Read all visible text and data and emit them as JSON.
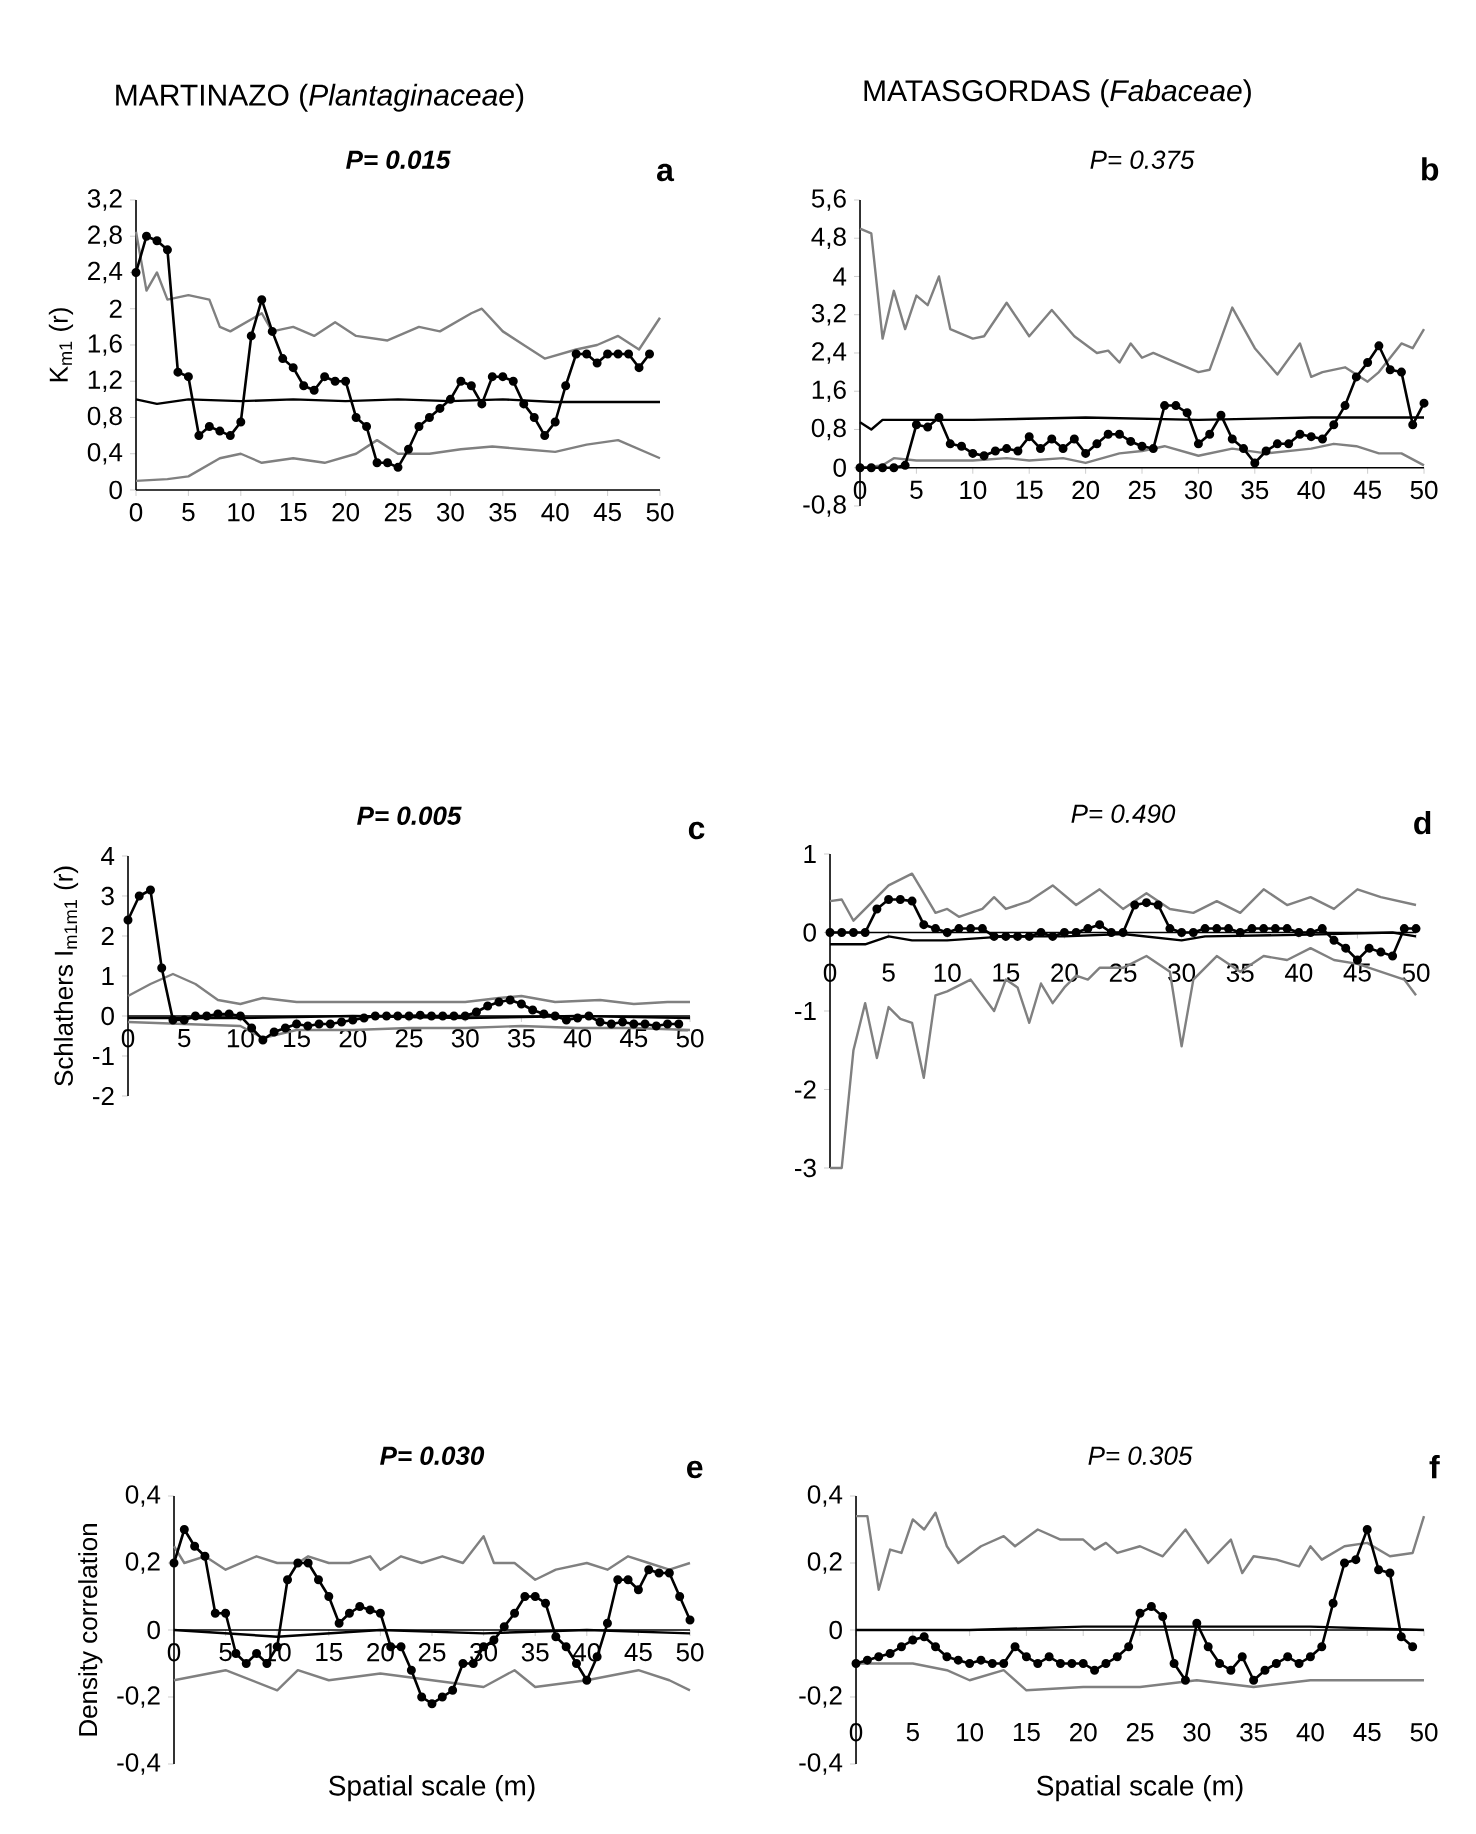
{
  "chart_data": [
    {
      "type": "line",
      "subtitle": "MARTINAZO (*Plantaginaceae*)",
      "title": "**P= 0.015**",
      "ylabel": "K$_{m1}$ (r)",
      "annotations": [
        "a"
      ],
      "xlim": [
        0,
        50
      ],
      "ylim": [
        0,
        3.2
      ],
      "xticks": [
        0,
        5,
        10,
        15,
        20,
        25,
        30,
        35,
        40,
        45,
        50
      ],
      "yticks": [
        0,
        {
          "value": 0.4,
          "label": "0,4"
        },
        {
          "value": 0.8,
          "label": "0,8"
        },
        {
          "value": 1.2,
          "label": "1,2"
        },
        {
          "value": 1.6,
          "label": "1,6"
        },
        2,
        {
          "value": 2.4,
          "label": "2,4"
        },
        {
          "value": 2.8,
          "label": "2,8"
        },
        {
          "value": 3.2,
          "label": "3,2"
        }
      ],
      "series": [
        {
          "color": "#808080",
          "x": [
            0,
            1,
            2,
            3,
            5,
            7,
            8,
            9,
            12,
            13,
            15,
            17,
            19,
            21,
            24,
            27,
            29,
            32,
            33,
            35,
            37,
            39,
            42,
            44,
            46,
            48,
            50
          ],
          "values": [
            2.85,
            2.2,
            2.4,
            2.1,
            2.15,
            2.1,
            1.8,
            1.75,
            1.95,
            1.75,
            1.8,
            1.7,
            1.85,
            1.7,
            1.65,
            1.8,
            1.75,
            1.95,
            2.0,
            1.75,
            1.6,
            1.45,
            1.55,
            1.6,
            1.7,
            1.55,
            1.9
          ]
        },
        {
          "color": "#808080",
          "x": [
            0,
            3,
            5,
            8,
            10,
            12,
            15,
            18,
            21,
            23,
            25,
            28,
            31,
            34,
            37,
            40,
            43,
            46,
            48,
            50
          ],
          "values": [
            0.1,
            0.12,
            0.15,
            0.35,
            0.4,
            0.3,
            0.35,
            0.3,
            0.4,
            0.55,
            0.4,
            0.4,
            0.45,
            0.48,
            0.45,
            0.42,
            0.5,
            0.55,
            0.45,
            0.35
          ]
        },
        {
          "color": "#000000",
          "x": [
            0,
            2,
            5,
            10,
            15,
            20,
            25,
            30,
            35,
            40,
            45,
            50
          ],
          "values": [
            1.0,
            0.95,
            1.0,
            0.98,
            1.0,
            0.98,
            1.0,
            0.98,
            1.0,
            0.97,
            0.97,
            0.97
          ]
        },
        {
          "color": "#000000",
          "marker": "circle",
          "x": [
            0,
            1,
            2,
            3,
            4,
            5,
            6,
            7,
            8,
            9,
            10,
            11,
            12,
            13,
            14,
            15,
            16,
            17,
            18,
            19,
            20,
            21,
            22,
            23,
            24,
            25,
            26,
            27,
            28,
            29,
            30,
            31,
            32,
            33,
            34,
            35,
            36,
            37,
            38,
            39,
            40,
            41,
            42,
            43,
            44,
            45,
            46,
            47,
            48,
            49
          ],
          "values": [
            2.4,
            2.8,
            2.75,
            2.65,
            1.3,
            1.25,
            0.6,
            0.7,
            0.65,
            0.6,
            0.75,
            1.7,
            2.1,
            1.75,
            1.45,
            1.35,
            1.15,
            1.1,
            1.25,
            1.2,
            1.2,
            0.8,
            0.7,
            0.3,
            0.3,
            0.25,
            0.45,
            0.7,
            0.8,
            0.9,
            1.0,
            1.2,
            1.15,
            0.95,
            1.25,
            1.25,
            1.2,
            0.95,
            0.8,
            0.6,
            0.75,
            1.15,
            1.5,
            1.5,
            1.4,
            1.5,
            1.5,
            1.5,
            1.35,
            1.5
          ]
        }
      ]
    },
    {
      "type": "line",
      "subtitle": "MATASGORDAS (*Fabaceae*)",
      "title": "P= 0.375",
      "annotations": [
        "b"
      ],
      "xlim": [
        0,
        50
      ],
      "ylim": [
        -0.8,
        5.6
      ],
      "xticks": [
        0,
        5,
        10,
        15,
        20,
        25,
        30,
        35,
        40,
        45,
        50
      ],
      "yticks": [
        {
          "value": -0.8,
          "label": "-0,8"
        },
        0,
        {
          "value": 0.8,
          "label": "0,8"
        },
        {
          "value": 1.6,
          "label": "1,6"
        },
        {
          "value": 2.4,
          "label": "2,4"
        },
        {
          "value": 3.2,
          "label": "3,2"
        },
        4,
        {
          "value": 4.8,
          "label": "4,8"
        },
        {
          "value": 5.6,
          "label": "5,6"
        }
      ],
      "series": [
        {
          "color": "#808080",
          "x": [
            0,
            1,
            2,
            3,
            4,
            5,
            6,
            7,
            8,
            10,
            11,
            13,
            15,
            17,
            19,
            21,
            22,
            23,
            24,
            25,
            26,
            28,
            30,
            31,
            33,
            35,
            37,
            39,
            40,
            41,
            43,
            45,
            46,
            48,
            49,
            50
          ],
          "values": [
            5.0,
            4.9,
            2.7,
            3.7,
            2.9,
            3.6,
            3.4,
            4.0,
            2.9,
            2.7,
            2.75,
            3.45,
            2.75,
            3.3,
            2.75,
            2.4,
            2.45,
            2.2,
            2.6,
            2.3,
            2.4,
            2.2,
            2.0,
            2.05,
            3.35,
            2.5,
            1.95,
            2.6,
            1.9,
            2.0,
            2.1,
            1.8,
            2.0,
            2.6,
            2.5,
            2.9
          ]
        },
        {
          "color": "#808080",
          "x": [
            0,
            2,
            3,
            5,
            10,
            13,
            15,
            18,
            20,
            23,
            25,
            27,
            30,
            33,
            36,
            40,
            42,
            44,
            46,
            48,
            50
          ],
          "values": [
            0,
            0.05,
            0.2,
            0.15,
            0.15,
            0.2,
            0.15,
            0.2,
            0.1,
            0.3,
            0.35,
            0.45,
            0.25,
            0.4,
            0.3,
            0.4,
            0.5,
            0.45,
            0.3,
            0.3,
            0.05
          ]
        },
        {
          "color": "#000000",
          "x": [
            0,
            1,
            2,
            5,
            10,
            20,
            30,
            40,
            50
          ],
          "values": [
            0.95,
            0.8,
            1.0,
            1.0,
            1.0,
            1.05,
            1.0,
            1.05,
            1.05
          ]
        },
        {
          "color": "#000000",
          "marker": "circle",
          "x": [
            0,
            1,
            2,
            3,
            4,
            5,
            6,
            7,
            8,
            9,
            10,
            11,
            12,
            13,
            14,
            15,
            16,
            17,
            18,
            19,
            20,
            21,
            22,
            23,
            24,
            25,
            26,
            27,
            28,
            29,
            30,
            31,
            32,
            33,
            34,
            35,
            36,
            37,
            38,
            39,
            40,
            41,
            42,
            43,
            44,
            45,
            46,
            47,
            48,
            49,
            50
          ],
          "values": [
            0,
            0,
            0,
            0,
            0.05,
            0.9,
            0.85,
            1.05,
            0.5,
            0.45,
            0.3,
            0.25,
            0.35,
            0.4,
            0.35,
            0.65,
            0.4,
            0.6,
            0.4,
            0.6,
            0.3,
            0.5,
            0.7,
            0.7,
            0.55,
            0.45,
            0.4,
            1.3,
            1.3,
            1.15,
            0.5,
            0.7,
            1.1,
            0.6,
            0.4,
            0.1,
            0.35,
            0.5,
            0.5,
            0.7,
            0.65,
            0.6,
            0.9,
            1.3,
            1.9,
            2.2,
            2.55,
            2.05,
            2.0,
            0.9,
            1.35
          ]
        }
      ]
    },
    {
      "type": "line",
      "title": "**P= 0.005**",
      "ylabel": "Schlathers I$_{m1m1}$ (r)",
      "annotations": [
        "c"
      ],
      "xlim": [
        0,
        50
      ],
      "ylim": [
        -2,
        4
      ],
      "xticks": [
        0,
        5,
        10,
        15,
        20,
        25,
        30,
        35,
        40,
        45,
        50
      ],
      "yticks": [
        -2,
        -1,
        0,
        1,
        2,
        3,
        4
      ],
      "series": [
        {
          "color": "#808080",
          "x": [
            0,
            2,
            4,
            6,
            8,
            10,
            12,
            15,
            20,
            25,
            30,
            33,
            35,
            38,
            42,
            45,
            48,
            50
          ],
          "values": [
            0.5,
            0.8,
            1.05,
            0.8,
            0.4,
            0.3,
            0.45,
            0.35,
            0.35,
            0.35,
            0.35,
            0.45,
            0.5,
            0.35,
            0.4,
            0.3,
            0.35,
            0.35
          ]
        },
        {
          "color": "#808080",
          "x": [
            0,
            5,
            10,
            12,
            15,
            20,
            25,
            30,
            35,
            40,
            45,
            50
          ],
          "values": [
            -0.15,
            -0.2,
            -0.25,
            -0.55,
            -0.35,
            -0.35,
            -0.3,
            -0.3,
            -0.25,
            -0.3,
            -0.3,
            -0.35
          ]
        },
        {
          "color": "#000000",
          "x": [
            0,
            10,
            20,
            30,
            40,
            50
          ],
          "values": [
            -0.05,
            -0.05,
            0,
            -0.05,
            0,
            -0.05
          ]
        },
        {
          "color": "#000000",
          "marker": "circle",
          "x": [
            0,
            1,
            2,
            3,
            4,
            5,
            6,
            7,
            8,
            9,
            10,
            11,
            12,
            13,
            14,
            15,
            16,
            17,
            18,
            19,
            20,
            21,
            22,
            23,
            24,
            25,
            26,
            27,
            28,
            29,
            30,
            31,
            32,
            33,
            34,
            35,
            36,
            37,
            38,
            39,
            40,
            41,
            42,
            43,
            44,
            45,
            46,
            47,
            48,
            49
          ],
          "values": [
            2.4,
            3.0,
            3.15,
            1.2,
            -0.1,
            -0.1,
            0,
            0,
            0.05,
            0.05,
            0,
            -0.3,
            -0.6,
            -0.4,
            -0.3,
            -0.2,
            -0.25,
            -0.2,
            -0.2,
            -0.15,
            -0.1,
            -0.05,
            0,
            0,
            0,
            0,
            0.02,
            0,
            0,
            0,
            0,
            0.1,
            0.25,
            0.35,
            0.4,
            0.3,
            0.15,
            0.05,
            0,
            -0.1,
            -0.05,
            0,
            -0.15,
            -0.2,
            -0.15,
            -0.2,
            -0.2,
            -0.25,
            -0.2,
            -0.2
          ]
        }
      ]
    },
    {
      "type": "line",
      "title": "P= 0.490",
      "annotations": [
        "d"
      ],
      "xlim": [
        0,
        50
      ],
      "ylim": [
        -3,
        1
      ],
      "xticks": [
        0,
        5,
        10,
        15,
        20,
        25,
        30,
        35,
        40,
        45,
        50
      ],
      "yticks": [
        -3,
        -2,
        -1,
        0,
        1
      ],
      "series": [
        {
          "color": "#808080",
          "x": [
            0,
            1,
            2,
            3,
            5,
            7,
            8,
            9,
            10,
            11,
            13,
            14,
            15,
            17,
            19,
            21,
            23,
            25,
            27,
            29,
            31,
            33,
            35,
            37,
            39,
            41,
            43,
            45,
            47,
            50
          ],
          "values": [
            0.4,
            0.42,
            0.15,
            0.3,
            0.6,
            0.75,
            0.5,
            0.25,
            0.3,
            0.2,
            0.3,
            0.45,
            0.3,
            0.4,
            0.6,
            0.35,
            0.55,
            0.3,
            0.5,
            0.3,
            0.25,
            0.4,
            0.25,
            0.55,
            0.35,
            0.45,
            0.3,
            0.55,
            0.45,
            0.35
          ]
        },
        {
          "color": "#808080",
          "x": [
            0,
            1,
            2,
            3,
            4,
            5,
            6,
            7,
            8,
            9,
            10,
            12,
            14,
            15,
            16,
            17,
            18,
            19,
            20,
            21,
            22,
            23,
            25,
            27,
            29,
            30,
            31,
            33,
            35,
            37,
            39,
            41,
            43,
            45,
            47,
            49,
            50
          ],
          "values": [
            -3.0,
            -3.0,
            -1.5,
            -0.9,
            -1.6,
            -0.95,
            -1.1,
            -1.15,
            -1.85,
            -0.8,
            -0.75,
            -0.6,
            -1.0,
            -0.6,
            -0.7,
            -1.15,
            -0.65,
            -0.9,
            -0.7,
            -0.55,
            -0.6,
            -0.45,
            -0.45,
            -0.3,
            -0.5,
            -1.45,
            -0.6,
            -0.3,
            -0.5,
            -0.3,
            -0.35,
            -0.2,
            -0.35,
            -0.4,
            -0.5,
            -0.6,
            -0.8
          ]
        },
        {
          "color": "#000000",
          "x": [
            0,
            3,
            5,
            7,
            10,
            15,
            20,
            25,
            30,
            32,
            40,
            48,
            50
          ],
          "values": [
            -0.15,
            -0.15,
            -0.05,
            -0.1,
            -0.1,
            -0.05,
            -0.05,
            -0.02,
            -0.1,
            -0.05,
            -0.03,
            0,
            -0.05
          ]
        },
        {
          "color": "#000000",
          "marker": "circle",
          "x": [
            0,
            1,
            2,
            3,
            4,
            5,
            6,
            7,
            8,
            9,
            10,
            11,
            12,
            13,
            14,
            15,
            16,
            17,
            18,
            19,
            20,
            21,
            22,
            23,
            24,
            25,
            26,
            27,
            28,
            29,
            30,
            31,
            32,
            33,
            34,
            35,
            36,
            37,
            38,
            39,
            40,
            41,
            42,
            43,
            44,
            45,
            46,
            47,
            48,
            49,
            50
          ],
          "values": [
            0,
            0,
            0,
            0,
            0.3,
            0.42,
            0.42,
            0.4,
            0.1,
            0.05,
            0,
            0.05,
            0.05,
            0.05,
            -0.05,
            -0.05,
            -0.05,
            -0.05,
            0,
            -0.05,
            0,
            0,
            0.05,
            0.1,
            0,
            0,
            0.35,
            0.38,
            0.35,
            0.05,
            0,
            0,
            0.05,
            0.05,
            0.05,
            0,
            0.05,
            0.05,
            0.05,
            0.05,
            0,
            0,
            0.05,
            -0.1,
            -0.2,
            -0.35,
            -0.2,
            -0.25,
            -0.3,
            0.05,
            0.05
          ]
        }
      ]
    },
    {
      "type": "line",
      "title": "**P= 0.030**",
      "xlabel": "Spatial scale (m)",
      "ylabel": "Density correlation",
      "annotations": [
        "e"
      ],
      "xlim": [
        0,
        50
      ],
      "ylim": [
        -0.4,
        0.4
      ],
      "xticks": [
        0,
        5,
        10,
        15,
        20,
        25,
        30,
        35,
        40,
        45,
        50
      ],
      "yticks": [
        {
          "value": -0.4,
          "label": "-0,4"
        },
        {
          "value": -0.2,
          "label": "-0,2"
        },
        0,
        {
          "value": 0.2,
          "label": "0,2"
        },
        {
          "value": 0.4,
          "label": "0,4"
        }
      ],
      "series": [
        {
          "color": "#808080",
          "x": [
            0,
            1,
            3,
            5,
            8,
            10,
            12,
            13,
            15,
            17,
            19,
            20,
            22,
            24,
            26,
            28,
            30,
            31,
            33,
            35,
            37,
            40,
            42,
            44,
            46,
            48,
            50
          ],
          "values": [
            0.25,
            0.2,
            0.22,
            0.18,
            0.22,
            0.2,
            0.2,
            0.22,
            0.2,
            0.2,
            0.22,
            0.18,
            0.22,
            0.2,
            0.22,
            0.2,
            0.28,
            0.2,
            0.2,
            0.15,
            0.18,
            0.2,
            0.18,
            0.22,
            0.2,
            0.18,
            0.2
          ]
        },
        {
          "color": "#808080",
          "x": [
            0,
            5,
            10,
            12,
            15,
            20,
            25,
            30,
            33,
            35,
            40,
            45,
            48,
            50
          ],
          "values": [
            -0.15,
            -0.12,
            -0.18,
            -0.12,
            -0.15,
            -0.13,
            -0.15,
            -0.17,
            -0.12,
            -0.17,
            -0.15,
            -0.12,
            -0.15,
            -0.18
          ]
        },
        {
          "color": "#000000",
          "x": [
            0,
            10,
            20,
            30,
            40,
            50
          ],
          "values": [
            0,
            -0.02,
            0,
            -0.01,
            0,
            -0.01
          ]
        },
        {
          "color": "#000000",
          "marker": "circle",
          "x": [
            0,
            1,
            2,
            3,
            4,
            5,
            6,
            7,
            8,
            9,
            10,
            11,
            12,
            13,
            14,
            15,
            16,
            17,
            18,
            19,
            20,
            21,
            22,
            23,
            24,
            25,
            26,
            27,
            28,
            29,
            30,
            31,
            32,
            33,
            34,
            35,
            36,
            37,
            38,
            39,
            40,
            41,
            42,
            43,
            44,
            45,
            46,
            47,
            48,
            49,
            50
          ],
          "values": [
            0.2,
            0.3,
            0.25,
            0.22,
            0.05,
            0.05,
            -0.07,
            -0.1,
            -0.07,
            -0.1,
            -0.05,
            0.15,
            0.2,
            0.2,
            0.15,
            0.1,
            0.02,
            0.05,
            0.07,
            0.06,
            0.05,
            -0.05,
            -0.05,
            -0.12,
            -0.2,
            -0.22,
            -0.2,
            -0.18,
            -0.1,
            -0.1,
            -0.05,
            -0.03,
            0.01,
            0.05,
            0.1,
            0.1,
            0.08,
            -0.02,
            -0.05,
            -0.1,
            -0.15,
            -0.08,
            0.02,
            0.15,
            0.15,
            0.12,
            0.18,
            0.17,
            0.17,
            0.1,
            0.03
          ]
        }
      ]
    },
    {
      "type": "line",
      "title": "P= 0.305",
      "xlabel": "Spatial scale (m)",
      "annotations": [
        "f"
      ],
      "xlim": [
        0,
        50
      ],
      "ylim": [
        -0.4,
        0.4
      ],
      "xticks": [
        0,
        5,
        10,
        15,
        20,
        25,
        30,
        35,
        40,
        45,
        50
      ],
      "yticks": [
        {
          "value": -0.4,
          "label": "-0,4"
        },
        {
          "value": -0.2,
          "label": "-0,2"
        },
        0,
        {
          "value": 0.2,
          "label": "0,2"
        },
        {
          "value": 0.4,
          "label": "0,4"
        }
      ],
      "series": [
        {
          "color": "#808080",
          "x": [
            0,
            1,
            2,
            3,
            4,
            5,
            6,
            7,
            8,
            9,
            11,
            13,
            14,
            16,
            18,
            20,
            21,
            22,
            23,
            25,
            27,
            29,
            30,
            31,
            33,
            34,
            35,
            37,
            39,
            40,
            41,
            43,
            45,
            47,
            49,
            50
          ],
          "values": [
            0.34,
            0.34,
            0.12,
            0.24,
            0.23,
            0.33,
            0.3,
            0.35,
            0.25,
            0.2,
            0.25,
            0.28,
            0.25,
            0.3,
            0.27,
            0.27,
            0.24,
            0.26,
            0.23,
            0.25,
            0.22,
            0.3,
            0.25,
            0.2,
            0.27,
            0.17,
            0.22,
            0.21,
            0.19,
            0.25,
            0.21,
            0.25,
            0.26,
            0.22,
            0.23,
            0.34
          ]
        },
        {
          "color": "#808080",
          "x": [
            0,
            5,
            8,
            10,
            13,
            15,
            20,
            25,
            30,
            35,
            40,
            45,
            48,
            50
          ],
          "values": [
            -0.1,
            -0.1,
            -0.12,
            -0.15,
            -0.12,
            -0.18,
            -0.17,
            -0.17,
            -0.15,
            -0.17,
            -0.15,
            -0.15,
            -0.15,
            -0.15
          ]
        },
        {
          "color": "#000000",
          "x": [
            0,
            10,
            20,
            30,
            40,
            50
          ],
          "values": [
            0,
            0,
            0.01,
            0.01,
            0.01,
            0
          ]
        },
        {
          "color": "#000000",
          "marker": "circle",
          "x": [
            0,
            1,
            2,
            3,
            4,
            5,
            6,
            7,
            8,
            9,
            10,
            11,
            12,
            13,
            14,
            15,
            16,
            17,
            18,
            19,
            20,
            21,
            22,
            23,
            24,
            25,
            26,
            27,
            28,
            29,
            30,
            31,
            32,
            33,
            34,
            35,
            36,
            37,
            38,
            39,
            40,
            41,
            42,
            43,
            44,
            45,
            46,
            47,
            48,
            49
          ],
          "values": [
            -0.1,
            -0.09,
            -0.08,
            -0.07,
            -0.05,
            -0.03,
            -0.02,
            -0.05,
            -0.08,
            -0.09,
            -0.1,
            -0.09,
            -0.1,
            -0.1,
            -0.05,
            -0.08,
            -0.1,
            -0.08,
            -0.1,
            -0.1,
            -0.1,
            -0.12,
            -0.1,
            -0.08,
            -0.05,
            0.05,
            0.07,
            0.04,
            -0.1,
            -0.15,
            0.02,
            -0.05,
            -0.1,
            -0.12,
            -0.08,
            -0.15,
            -0.12,
            -0.1,
            -0.08,
            -0.1,
            -0.08,
            -0.05,
            0.08,
            0.2,
            0.21,
            0.3,
            0.18,
            0.17,
            -0.02,
            -0.05
          ]
        }
      ]
    }
  ]
}
